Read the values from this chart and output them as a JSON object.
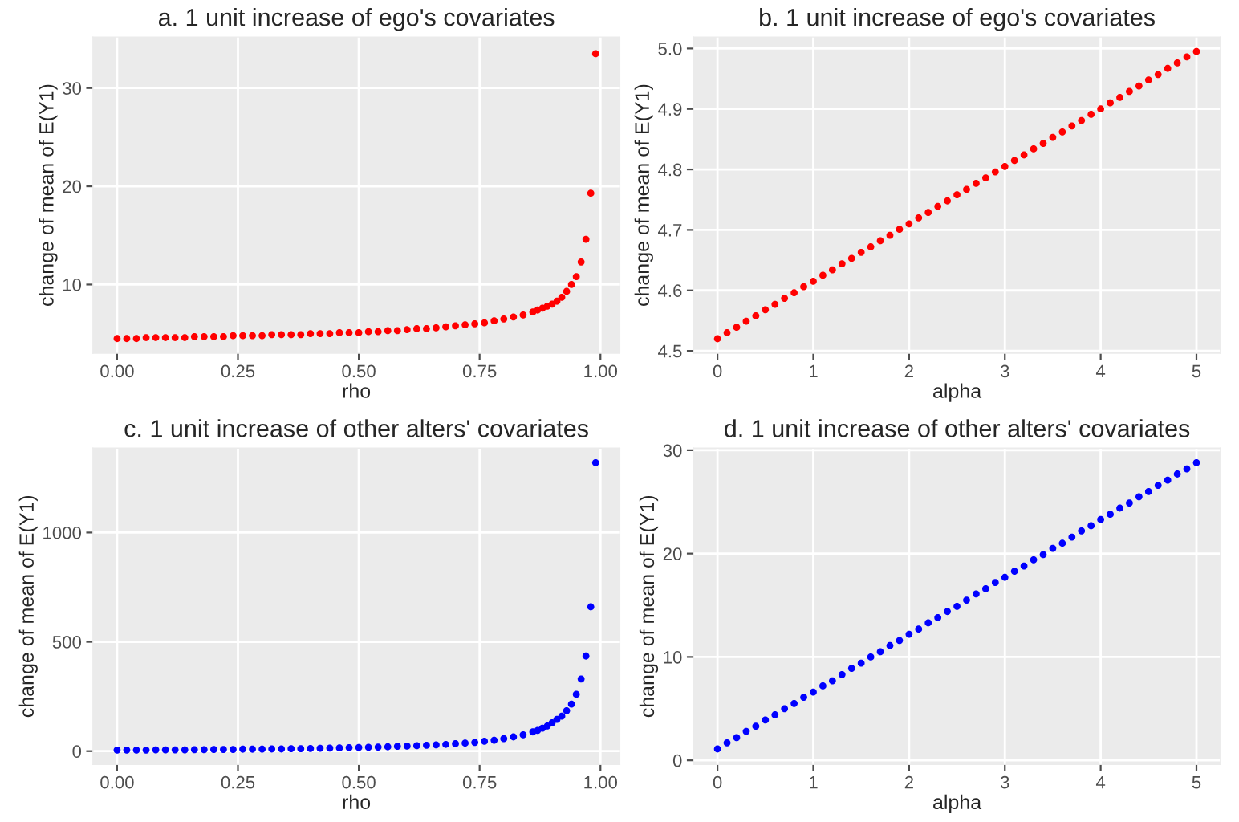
{
  "chart_data": [
    {
      "type": "scatter",
      "title": "a. 1 unit increase of ego's covariates",
      "xlabel": "rho",
      "ylabel": "change of mean of E(Y1)",
      "marker": "circle",
      "grid": true,
      "legend": false,
      "x": [
        0,
        0.02,
        0.04,
        0.06,
        0.08,
        0.1,
        0.12,
        0.14,
        0.16,
        0.18,
        0.2,
        0.22,
        0.24,
        0.26,
        0.28,
        0.3,
        0.32,
        0.34,
        0.36,
        0.38,
        0.4,
        0.42,
        0.44,
        0.46,
        0.48,
        0.5,
        0.52,
        0.54,
        0.56,
        0.58,
        0.6,
        0.62,
        0.64,
        0.66,
        0.68,
        0.7,
        0.72,
        0.74,
        0.76,
        0.78,
        0.8,
        0.82,
        0.84,
        0.86,
        0.87,
        0.88,
        0.89,
        0.9,
        0.91,
        0.92,
        0.93,
        0.94,
        0.95,
        0.96,
        0.97,
        0.98,
        0.99
      ],
      "series": [
        {
          "color": "#ff0000",
          "values": [
            4.5,
            4.5,
            4.5,
            4.6,
            4.6,
            4.6,
            4.6,
            4.6,
            4.7,
            4.7,
            4.7,
            4.7,
            4.8,
            4.8,
            4.8,
            4.8,
            4.9,
            4.9,
            4.9,
            4.9,
            5.0,
            5.0,
            5.0,
            5.1,
            5.1,
            5.1,
            5.2,
            5.2,
            5.3,
            5.3,
            5.4,
            5.5,
            5.5,
            5.6,
            5.7,
            5.8,
            5.9,
            6.0,
            6.1,
            6.3,
            6.5,
            6.7,
            6.9,
            7.2,
            7.4,
            7.6,
            7.8,
            8.0,
            8.3,
            8.7,
            9.3,
            10.0,
            10.8,
            12.3,
            14.6,
            19.3,
            33.5
          ]
        }
      ],
      "xlim": [
        -0.05,
        1.04
      ],
      "xticks": [
        {
          "value": 0,
          "label": "0.00"
        },
        0.25,
        {
          "value": 0.5,
          "label": "0.50"
        },
        0.75,
        {
          "value": 1,
          "label": "1.00"
        }
      ],
      "ylim": [
        3.0,
        35.2
      ],
      "yticks": [
        10,
        20,
        30
      ]
    },
    {
      "type": "scatter",
      "title": "b. 1 unit increase of ego's covariates",
      "xlabel": "alpha",
      "ylabel": "change of mean of E(Y1)",
      "marker": "circle",
      "grid": true,
      "legend": false,
      "x": [
        0,
        0.1,
        0.2,
        0.3,
        0.4,
        0.5,
        0.6,
        0.7,
        0.8,
        0.9,
        1,
        1.1,
        1.2,
        1.3,
        1.4,
        1.5,
        1.6,
        1.7,
        1.8,
        1.9,
        2,
        2.1,
        2.2,
        2.3,
        2.4,
        2.5,
        2.6,
        2.7,
        2.8,
        2.9,
        3,
        3.1,
        3.2,
        3.3,
        3.4,
        3.5,
        3.6,
        3.7,
        3.8,
        3.9,
        4,
        4.1,
        4.2,
        4.3,
        4.4,
        4.5,
        4.6,
        4.7,
        4.8,
        4.9,
        5
      ],
      "series": [
        {
          "color": "#ff0000",
          "values": [
            4.52,
            4.53,
            4.539,
            4.549,
            4.558,
            4.568,
            4.577,
            4.587,
            4.596,
            4.606,
            4.615,
            4.625,
            4.634,
            4.644,
            4.653,
            4.663,
            4.672,
            4.682,
            4.691,
            4.701,
            4.71,
            4.72,
            4.729,
            4.739,
            4.748,
            4.758,
            4.767,
            4.777,
            4.786,
            4.796,
            4.805,
            4.815,
            4.824,
            4.834,
            4.843,
            4.853,
            4.862,
            4.872,
            4.881,
            4.891,
            4.9,
            4.91,
            4.919,
            4.929,
            4.938,
            4.948,
            4.957,
            4.967,
            4.976,
            4.986,
            4.995
          ]
        }
      ],
      "xlim": [
        -0.25,
        5.25
      ],
      "xticks": [
        0,
        1,
        2,
        3,
        4,
        5
      ],
      "ylim": [
        4.496,
        5.019
      ],
      "yticks": [
        4.5,
        4.6,
        4.7,
        4.8,
        4.9,
        {
          "value": 5,
          "label": "5.0"
        }
      ]
    },
    {
      "type": "scatter",
      "title": "c. 1 unit increase of other alters' covariates",
      "xlabel": "rho",
      "ylabel": "change of mean of E(Y1)",
      "marker": "circle",
      "grid": true,
      "legend": false,
      "x": [
        0,
        0.02,
        0.04,
        0.06,
        0.08,
        0.1,
        0.12,
        0.14,
        0.16,
        0.18,
        0.2,
        0.22,
        0.24,
        0.26,
        0.28,
        0.3,
        0.32,
        0.34,
        0.36,
        0.38,
        0.4,
        0.42,
        0.44,
        0.46,
        0.48,
        0.5,
        0.52,
        0.54,
        0.56,
        0.58,
        0.6,
        0.62,
        0.64,
        0.66,
        0.68,
        0.7,
        0.72,
        0.74,
        0.76,
        0.78,
        0.8,
        0.82,
        0.84,
        0.86,
        0.87,
        0.88,
        0.89,
        0.9,
        0.91,
        0.92,
        0.93,
        0.94,
        0.95,
        0.96,
        0.97,
        0.98,
        0.99
      ],
      "series": [
        {
          "color": "#0000ff",
          "values": [
            5,
            5,
            5,
            5,
            6,
            6,
            6,
            6,
            7,
            7,
            8,
            8,
            8,
            9,
            9,
            9,
            10,
            10,
            11,
            11,
            12,
            13,
            14,
            15,
            16,
            17,
            18,
            19,
            20,
            22,
            23,
            25,
            27,
            29,
            31,
            34,
            37,
            40,
            45,
            50,
            57,
            65,
            75,
            88,
            95,
            105,
            115,
            130,
            145,
            160,
            185,
            215,
            260,
            330,
            435,
            660,
            1320
          ]
        }
      ],
      "xlim": [
        -0.05,
        1.04
      ],
      "xticks": [
        {
          "value": 0,
          "label": "0.00"
        },
        0.25,
        {
          "value": 0.5,
          "label": "0.50"
        },
        0.75,
        {
          "value": 1,
          "label": "1.00"
        }
      ],
      "ylim": [
        -61,
        1386
      ],
      "yticks": [
        0,
        500,
        1000
      ]
    },
    {
      "type": "scatter",
      "title": "d. 1 unit increase of other alters' covariates",
      "xlabel": "alpha",
      "ylabel": "change of mean of E(Y1)",
      "marker": "circle",
      "grid": true,
      "legend": false,
      "x": [
        0,
        0.1,
        0.2,
        0.3,
        0.4,
        0.5,
        0.6,
        0.7,
        0.8,
        0.9,
        1,
        1.1,
        1.2,
        1.3,
        1.4,
        1.5,
        1.6,
        1.7,
        1.8,
        1.9,
        2,
        2.1,
        2.2,
        2.3,
        2.4,
        2.5,
        2.6,
        2.7,
        2.8,
        2.9,
        3,
        3.1,
        3.2,
        3.3,
        3.4,
        3.5,
        3.6,
        3.7,
        3.8,
        3.9,
        4,
        4.1,
        4.2,
        4.3,
        4.4,
        4.5,
        4.6,
        4.7,
        4.8,
        4.9,
        5
      ],
      "series": [
        {
          "color": "#0000ff",
          "values": [
            1.1,
            1.7,
            2.2,
            2.8,
            3.3,
            3.9,
            4.4,
            5.0,
            5.5,
            6.1,
            6.6,
            7.2,
            7.7,
            8.3,
            8.9,
            9.4,
            10.0,
            10.5,
            11.1,
            11.6,
            12.2,
            12.7,
            13.3,
            13.8,
            14.4,
            14.9,
            15.5,
            16.1,
            16.6,
            17.2,
            17.7,
            18.3,
            18.8,
            19.4,
            19.9,
            20.5,
            21.0,
            21.6,
            22.2,
            22.7,
            23.3,
            23.8,
            24.4,
            24.9,
            25.5,
            26.0,
            26.6,
            27.1,
            27.7,
            28.2,
            28.8
          ]
        }
      ],
      "xlim": [
        -0.25,
        5.25
      ],
      "xticks": [
        0,
        1,
        2,
        3,
        4,
        5
      ],
      "ylim": [
        -0.4,
        30.2
      ],
      "yticks": [
        0,
        10,
        20,
        30
      ]
    }
  ]
}
